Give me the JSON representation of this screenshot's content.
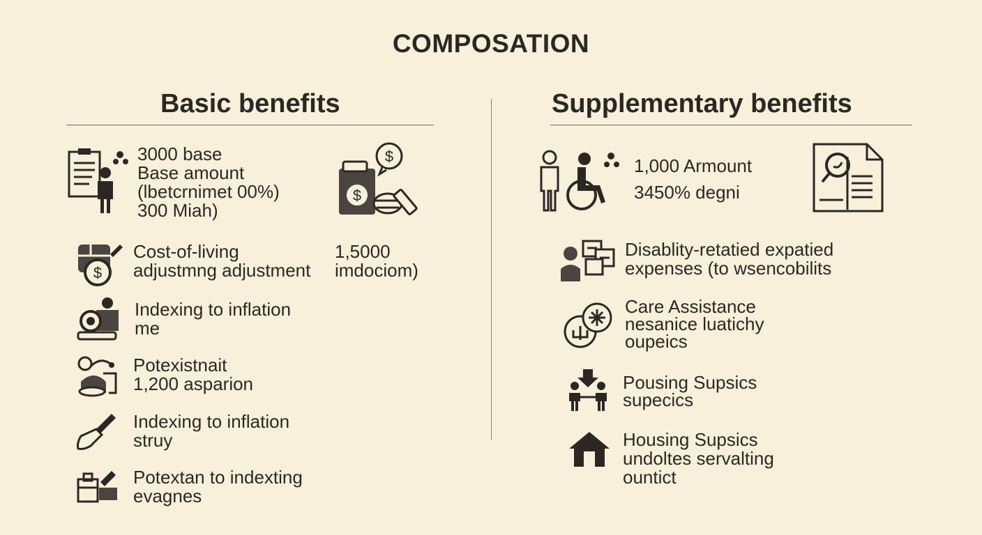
{
  "title": "COMPOSATION",
  "basic": {
    "heading": "Basic benefits",
    "items": [
      {
        "icon": "document-person-icon",
        "lines": [
          "3000 base",
          "Base amount",
          "(lbetcrnimet 00%)",
          "300 Miah)"
        ]
      },
      {
        "icon": "wallet-coin-icon",
        "lines": [
          "Cost-of-living",
          "adjustmng adjustment"
        ]
      },
      {
        "icon": "person-camera-icon",
        "lines": [
          "Indexing to inflation",
          "me"
        ]
      },
      {
        "icon": "person-chart-icon",
        "lines": [
          "Potexistnait",
          "1,200 asparion"
        ]
      },
      {
        "icon": "trowel-icon",
        "lines": [
          "Indexing to inflation",
          "struy"
        ]
      },
      {
        "icon": "toolbox-icon",
        "lines": [
          "Potextan to indexting",
          "evagnes"
        ]
      }
    ],
    "side_value": {
      "icon": "cash-register-icon",
      "lines": [
        "1,5000",
        "imdociom)"
      ]
    }
  },
  "supplementary": {
    "heading": "Supplementary benefits",
    "items": [
      {
        "icon": "person-wheelchair-icon",
        "lines": [
          "1,000 Armount",
          "3450% degni"
        ]
      },
      {
        "icon": "person-documents-icon",
        "lines": [
          "Disablity-retatied expatied",
          "expenses (to wsencobilits"
        ]
      },
      {
        "icon": "care-hands-icon",
        "lines": [
          "Care Assistance",
          "nesanice luatichy",
          "oupeics"
        ]
      },
      {
        "icon": "people-arrow-icon",
        "lines": [
          "Pousing Supsics",
          "supecics"
        ]
      },
      {
        "icon": "house-icon",
        "lines": [
          "Housing Supsics",
          "undoltes servalting",
          "ountict"
        ]
      }
    ],
    "document_icon": "document-magnifier-icon"
  }
}
